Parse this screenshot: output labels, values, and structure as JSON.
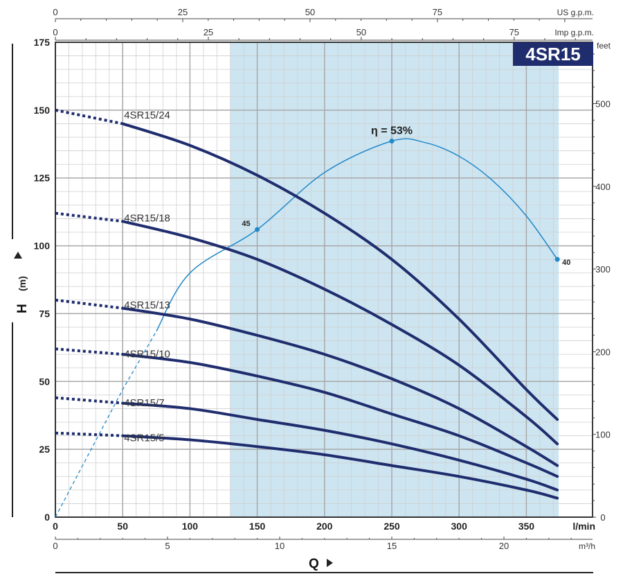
{
  "chart_data": {
    "type": "line",
    "badge": "4SR15",
    "x": {
      "title": "Q",
      "unit": "l/min",
      "range": [
        0,
        380
      ],
      "ticks": [
        0,
        50,
        100,
        150,
        200,
        250,
        300,
        350
      ]
    },
    "x_m3h": {
      "unit": "m³/h",
      "ticks": [
        0,
        5,
        10,
        15,
        20
      ]
    },
    "x_us": {
      "unit": "US g.p.m.",
      "ticks": [
        0,
        25,
        50,
        75
      ]
    },
    "x_imp": {
      "unit": "Imp g.p.m.",
      "ticks": [
        0,
        25,
        50,
        75
      ]
    },
    "y": {
      "title": "H",
      "unit": "(m)",
      "range": [
        0,
        175
      ],
      "ticks": [
        0,
        25,
        50,
        75,
        100,
        125,
        150,
        175
      ]
    },
    "y_feet": {
      "unit": "feet",
      "ticks": [
        0,
        100,
        200,
        300,
        400,
        500
      ]
    },
    "operating_range": [
      130,
      374
    ],
    "series": [
      {
        "name": "4SR15/24",
        "x": [
          0,
          50,
          100,
          150,
          200,
          250,
          300,
          350,
          373
        ],
        "y": [
          150,
          145,
          137,
          126,
          112,
          95,
          73,
          47,
          36
        ],
        "dashed_until": 50
      },
      {
        "name": "4SR15/18",
        "x": [
          0,
          50,
          100,
          150,
          200,
          250,
          300,
          350,
          373
        ],
        "y": [
          112,
          109,
          103,
          95,
          84,
          71,
          56,
          37,
          27
        ],
        "dashed_until": 50
      },
      {
        "name": "4SR15/13",
        "x": [
          0,
          50,
          100,
          150,
          200,
          250,
          300,
          350,
          373
        ],
        "y": [
          80,
          77,
          73,
          67,
          60,
          51,
          40,
          26,
          19
        ],
        "dashed_until": 50
      },
      {
        "name": "4SR15/10",
        "x": [
          0,
          50,
          100,
          150,
          200,
          250,
          300,
          350,
          373
        ],
        "y": [
          62,
          60,
          57,
          52,
          46,
          38,
          30,
          20,
          15
        ],
        "dashed_until": 50
      },
      {
        "name": "4SR15/7",
        "x": [
          0,
          50,
          100,
          150,
          200,
          250,
          300,
          350,
          373
        ],
        "y": [
          44,
          42,
          40,
          36,
          32,
          27,
          21,
          14,
          10
        ],
        "dashed_until": 50
      },
      {
        "name": "4SR15/5",
        "x": [
          0,
          50,
          100,
          150,
          200,
          250,
          300,
          350,
          373
        ],
        "y": [
          31,
          30,
          28.5,
          26,
          23,
          19,
          15,
          10,
          7
        ],
        "dashed_until": 50
      }
    ],
    "efficiency": {
      "x": [
        0,
        50,
        100,
        150,
        200,
        250,
        275,
        300,
        325,
        350,
        373
      ],
      "y": [
        0,
        47,
        90,
        106,
        127,
        138.6,
        138,
        133,
        124,
        111,
        95
      ],
      "dashed_until": 75,
      "markers": [
        {
          "x": 150,
          "y": 106,
          "label": "45"
        },
        {
          "x": 250,
          "y": 138.6,
          "label": "η = 53%"
        },
        {
          "x": 373,
          "y": 95,
          "label": "40"
        }
      ]
    },
    "colors": {
      "curve": "#1f2d6e",
      "efficiency": "#2288c8",
      "operating_band": "#cde5f1",
      "badge_bg": "#1f2d6e",
      "grid": "#b0b0b0",
      "frame": "#333333"
    }
  }
}
